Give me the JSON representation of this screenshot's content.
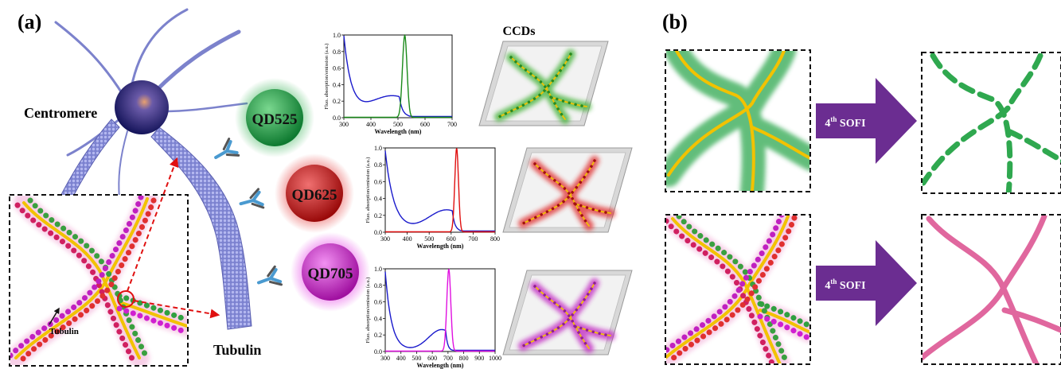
{
  "panel_a": {
    "label": "(a)",
    "centromere_label": "Centromere",
    "tubulin_label": "Tubulin",
    "inset_tubulin_label": "Tubulin",
    "ccds_label": "CCDs",
    "quantum_dots": [
      {
        "name": "QD525",
        "color": "#1e9a45"
      },
      {
        "name": "QD625",
        "color": "#c41818"
      },
      {
        "name": "QD705",
        "color": "#c21ac2"
      }
    ],
    "spectra": [
      {
        "ylabel": "Fluo. absorption/emission (a.u.)",
        "xlabel": "Wavelength (nm)",
        "xticks": [
          "300",
          "400",
          "500",
          "600",
          "700"
        ],
        "yticks": [
          "0.0",
          "0.2",
          "0.4",
          "0.6",
          "0.8",
          "1.0"
        ],
        "emission_color": "#1a8a1a"
      },
      {
        "ylabel": "Fluo. absorption/emission (a.u.)",
        "xlabel": "Wavelength (nm)",
        "xticks": [
          "300",
          "400",
          "500",
          "600",
          "700",
          "800"
        ],
        "yticks": [
          "0.0",
          "0.2",
          "0.4",
          "0.6",
          "0.8",
          "1.0"
        ],
        "emission_color": "#e01010"
      },
      {
        "ylabel": "Fluo. absorption/emission (a.u.)",
        "xlabel": "Wavelength (nm)",
        "xticks": [
          "300",
          "400",
          "500",
          "600",
          "700",
          "800",
          "900",
          "1000"
        ],
        "yticks": [
          "0.0",
          "0.2",
          "0.4",
          "0.6",
          "0.8",
          "1.0"
        ],
        "emission_color": "#e010e0"
      }
    ]
  },
  "panel_b": {
    "label": "(b)",
    "arrows": [
      {
        "prefix": "4",
        "sup": "th",
        "suffix": " SOFI"
      },
      {
        "prefix": "4",
        "sup": "th",
        "suffix": " SOFI"
      }
    ]
  },
  "colors": {
    "absorption": "#1a1acc",
    "arrow": "#6b2d91",
    "filament": "#f2c200",
    "green_glow": "#2fa84f",
    "pink_result": "#e0679e",
    "microtubule": "#6a6fc0"
  }
}
